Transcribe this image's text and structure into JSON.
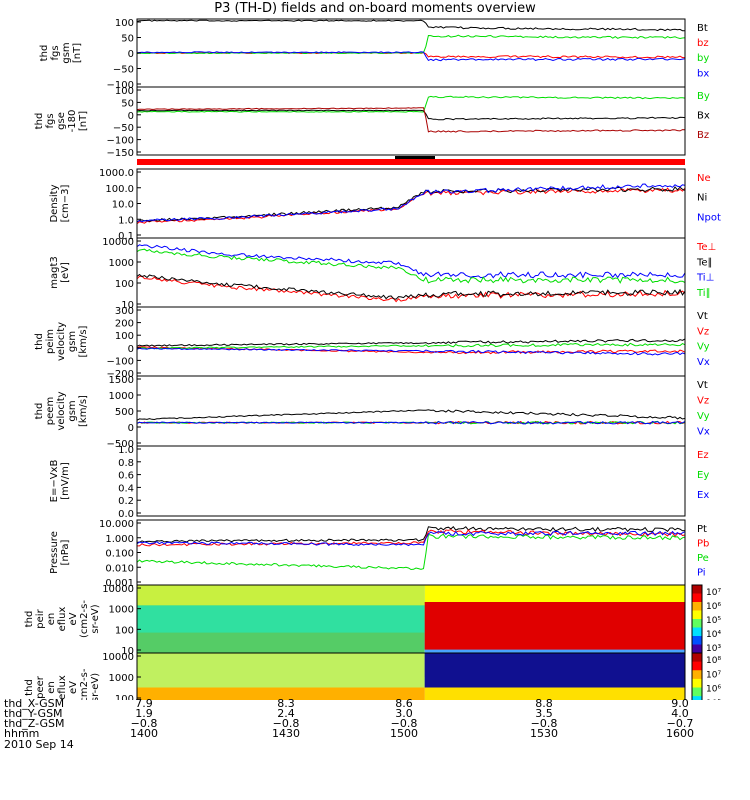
{
  "title": "P3 (TH-D) fields and on-board moments overview",
  "colors": {
    "black": "#000000",
    "red": "#ff0000",
    "darkred": "#aa0000",
    "green": "#00dd00",
    "blue": "#0000ff"
  },
  "chart_data": [
    {
      "type": "line",
      "ylabel": [
        "thd",
        "fgs",
        "gsm",
        "[nT]"
      ],
      "ylim": [
        -100,
        100
      ],
      "yticks": [
        "100",
        "50",
        "0",
        "−50",
        "−100"
      ],
      "series": [
        {
          "name": "Bt",
          "color": "black",
          "x": [
            1400,
            1505,
            1506,
            1600
          ],
          "y": [
            95,
            95,
            75,
            68
          ]
        },
        {
          "name": "bz",
          "color": "red",
          "x": [
            1400,
            1505,
            1506,
            1600
          ],
          "y": [
            0,
            0,
            -10,
            -12
          ]
        },
        {
          "name": "by",
          "color": "green",
          "x": [
            1400,
            1505,
            1506,
            1600
          ],
          "y": [
            0,
            0,
            50,
            45
          ]
        },
        {
          "name": "bx",
          "color": "blue",
          "x": [
            1400,
            1505,
            1506,
            1600
          ],
          "y": [
            2,
            2,
            -20,
            -18
          ]
        }
      ]
    },
    {
      "type": "line",
      "ylabel": [
        "thd",
        "fgs",
        "gse",
        "-180",
        "[nT]"
      ],
      "ylim": [
        -175,
        100
      ],
      "yticks": [
        "100",
        "50",
        "0",
        "−50",
        "−100",
        "−150"
      ],
      "series": [
        {
          "name": "By",
          "color": "green",
          "x": [
            1400,
            1505,
            1506,
            1600
          ],
          "y": [
            0,
            0,
            60,
            55
          ]
        },
        {
          "name": "Bx",
          "color": "black",
          "x": [
            1400,
            1505,
            1506,
            1600
          ],
          "y": [
            5,
            5,
            -30,
            -25
          ]
        },
        {
          "name": "Bz",
          "color": "darkred",
          "x": [
            1400,
            1505,
            1506,
            1600
          ],
          "y": [
            10,
            15,
            -80,
            -75
          ]
        }
      ]
    },
    {
      "type": "line",
      "ylabel": [
        "Density",
        "[cm−3]"
      ],
      "ylim": [
        0.1,
        1000
      ],
      "log": true,
      "yticks": [
        "1000.0",
        "100.0",
        "10.0",
        "1.0",
        "0.1"
      ],
      "series": [
        {
          "name": "Ne",
          "color": "red",
          "x": [
            1400,
            1430,
            1495,
            1505,
            1600
          ],
          "y": [
            0.8,
            1.2,
            5,
            40,
            60
          ]
        },
        {
          "name": "Ni",
          "color": "black",
          "x": [
            1400,
            1430,
            1495,
            1505,
            1600
          ],
          "y": [
            1,
            1.5,
            6,
            50,
            70
          ]
        },
        {
          "name": "Npot",
          "color": "blue",
          "x": [
            1400,
            1430,
            1495,
            1505,
            1600
          ],
          "y": [
            1,
            1.4,
            5,
            45,
            120
          ]
        }
      ]
    },
    {
      "type": "line",
      "ylabel": [
        "magt3",
        "[eV]"
      ],
      "ylim": [
        10,
        10000
      ],
      "log": true,
      "yticks": [
        "10000",
        "1000",
        "100",
        "10"
      ],
      "series": [
        {
          "name": "Te⊥",
          "color": "red",
          "x": [
            1400,
            1430,
            1495,
            1505,
            1600
          ],
          "y": [
            200,
            80,
            20,
            30,
            40
          ]
        },
        {
          "name": "Te∥",
          "color": "black",
          "x": [
            1400,
            1430,
            1495,
            1505,
            1600
          ],
          "y": [
            250,
            100,
            25,
            35,
            45
          ]
        },
        {
          "name": "Ti⊥",
          "color": "blue",
          "x": [
            1400,
            1430,
            1495,
            1505,
            1600
          ],
          "y": [
            5000,
            2000,
            800,
            250,
            250
          ]
        },
        {
          "name": "Ti∥",
          "color": "green",
          "x": [
            1400,
            1430,
            1495,
            1505,
            1600
          ],
          "y": [
            3000,
            1500,
            500,
            150,
            150
          ]
        }
      ]
    },
    {
      "type": "line",
      "ylabel": [
        "thd",
        "peim",
        "velocity",
        "gsm",
        "[km/s]"
      ],
      "ylim": [
        -200,
        300
      ],
      "yticks": [
        "300",
        "200",
        "100",
        "0",
        "−100",
        "−200"
      ],
      "series": [
        {
          "name": "Vt",
          "color": "black",
          "x": [
            1400,
            1505,
            1600
          ],
          "y": [
            20,
            40,
            60
          ]
        },
        {
          "name": "Vz",
          "color": "red",
          "x": [
            1400,
            1505,
            1600
          ],
          "y": [
            10,
            -30,
            -20
          ]
        },
        {
          "name": "Vy",
          "color": "green",
          "x": [
            1400,
            1505,
            1600
          ],
          "y": [
            0,
            20,
            30
          ]
        },
        {
          "name": "Vx",
          "color": "blue",
          "x": [
            1400,
            1505,
            1600
          ],
          "y": [
            0,
            -20,
            -40
          ]
        }
      ]
    },
    {
      "type": "line",
      "ylabel": [
        "thd",
        "peem",
        "velocity",
        "gsm",
        "[km/s]"
      ],
      "ylim": [
        -750,
        1500
      ],
      "yticks": [
        "1500",
        "1000",
        "500",
        "0",
        "−500"
      ],
      "series": [
        {
          "name": "Vt",
          "color": "black",
          "x": [
            1400,
            1505,
            1600
          ],
          "y": [
            100,
            400,
            150
          ]
        },
        {
          "name": "Vz",
          "color": "red",
          "x": [
            1400,
            1505,
            1600
          ],
          "y": [
            0,
            0,
            0
          ]
        },
        {
          "name": "Vy",
          "color": "green",
          "x": [
            1400,
            1505,
            1600
          ],
          "y": [
            0,
            0,
            0
          ]
        },
        {
          "name": "Vx",
          "color": "blue",
          "x": [
            1400,
            1505,
            1600
          ],
          "y": [
            0,
            0,
            0
          ]
        }
      ]
    },
    {
      "type": "line",
      "ylabel": [
        "E=−VxB",
        "[mV/m]"
      ],
      "ylim": [
        0,
        1
      ],
      "yticks": [
        "1.0",
        "0.8",
        "0.6",
        "0.4",
        "0.2",
        "0.0"
      ],
      "series": [
        {
          "name": "Ez",
          "color": "red",
          "x": [],
          "y": []
        },
        {
          "name": "Ey",
          "color": "green",
          "x": [],
          "y": []
        },
        {
          "name": "Ex",
          "color": "blue",
          "x": [],
          "y": []
        }
      ]
    },
    {
      "type": "line",
      "ylabel": [
        "Pressure",
        "[nPa]"
      ],
      "ylim": [
        0.001,
        10
      ],
      "log": true,
      "yticks": [
        "10.000",
        "1.000",
        "0.100",
        "0.010",
        "0.001"
      ],
      "series": [
        {
          "name": "Pt",
          "color": "black",
          "x": [
            1400,
            1505,
            1506,
            1600
          ],
          "y": [
            0.5,
            0.6,
            3,
            2.5
          ]
        },
        {
          "name": "Pb",
          "color": "red",
          "x": [
            1400,
            1505,
            1506,
            1600
          ],
          "y": [
            0.3,
            0.4,
            2,
            1.2
          ]
        },
        {
          "name": "Pe",
          "color": "green",
          "x": [
            1400,
            1505,
            1506,
            1600
          ],
          "y": [
            0.03,
            0.01,
            1,
            0.8
          ]
        },
        {
          "name": "Pi",
          "color": "blue",
          "x": [
            1400,
            1505,
            1506,
            1600
          ],
          "y": [
            0.4,
            0.3,
            1.5,
            1.5
          ]
        }
      ]
    },
    {
      "type": "heatmap",
      "ylabel": [
        "thd",
        "peir",
        "en",
        "eflux",
        "eV",
        "(cm2-s-",
        "sr-eV)"
      ],
      "ylim": [
        5,
        20000
      ],
      "log": true,
      "yticks": [
        "10000",
        "1000",
        "100",
        "10"
      ],
      "colorbar_ticks": [
        "10⁷",
        "10⁶",
        "10⁵",
        "10⁴",
        "10³"
      ]
    },
    {
      "type": "heatmap",
      "ylabel": [
        "thd",
        "peer",
        "en",
        "eflux",
        "eV",
        "(cm2-s-",
        "sr-eV)"
      ],
      "ylim": [
        5,
        20000
      ],
      "log": true,
      "yticks": [
        "10000",
        "1000",
        "100",
        "10"
      ],
      "colorbar_ticks": [
        "10⁸",
        "10⁷",
        "10⁶",
        "10⁵",
        "10⁴"
      ]
    }
  ],
  "footer": {
    "rows": [
      {
        "label": "thd_X-GSM",
        "values": [
          "7.9",
          "8.3",
          "8.6",
          "8.8",
          "9.0"
        ]
      },
      {
        "label": "thd_Y-GSM",
        "values": [
          "1.9",
          "2.4",
          "3.0",
          "3.5",
          "4.0"
        ]
      },
      {
        "label": "thd_Z-GSM",
        "values": [
          "−0.8",
          "−0.8",
          "−0.8",
          "−0.8",
          "−0.7"
        ]
      },
      {
        "label": "hhmm",
        "values": [
          "1400",
          "1430",
          "1500",
          "1530",
          "1600"
        ]
      }
    ],
    "date": "2010 Sep 14"
  }
}
